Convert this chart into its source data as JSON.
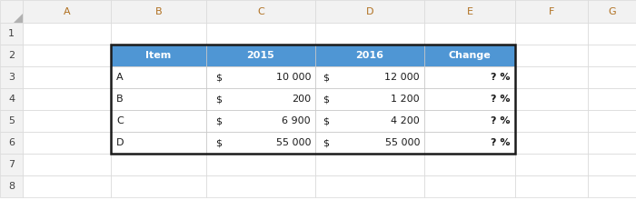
{
  "col_letters": [
    "",
    "A",
    "B",
    "C",
    "D",
    "E",
    "F",
    "G"
  ],
  "row_numbers": [
    "1",
    "2",
    "3",
    "4",
    "5",
    "6",
    "7",
    "8"
  ],
  "header_bg": "#4F96D4",
  "header_text_color": "#FFFFFF",
  "outer_border_color": "#1A1A1A",
  "outer_border_lw": 1.8,
  "inner_line_color": "#C8C8C8",
  "grid_color": "#D8D8D8",
  "row_num_bg": "#F2F2F2",
  "col_hdr_bg": "#F2F2F2",
  "cell_bg": "#FFFFFF",
  "spreadsheet_bg": "#FFFFFF",
  "header_row": [
    "Item",
    "2015",
    "2016",
    "Change"
  ],
  "data_rows": [
    [
      "A",
      "$",
      "10 000",
      "$",
      "12 000",
      "? %"
    ],
    [
      "B",
      "$",
      "200",
      "$",
      "1 200",
      "? %"
    ],
    [
      "C",
      "$",
      "6 900",
      "$",
      "4 200",
      "? %"
    ],
    [
      "D",
      "$",
      "55 000",
      "$",
      "55 000",
      "? %"
    ]
  ],
  "font_size_col_hdr": 8,
  "font_size_row_num": 8,
  "font_size_table_hdr": 8,
  "font_size_data": 8,
  "col_hdr_color": "#B07020",
  "row_num_color": "#404040",
  "data_text_color": "#1A1A1A"
}
